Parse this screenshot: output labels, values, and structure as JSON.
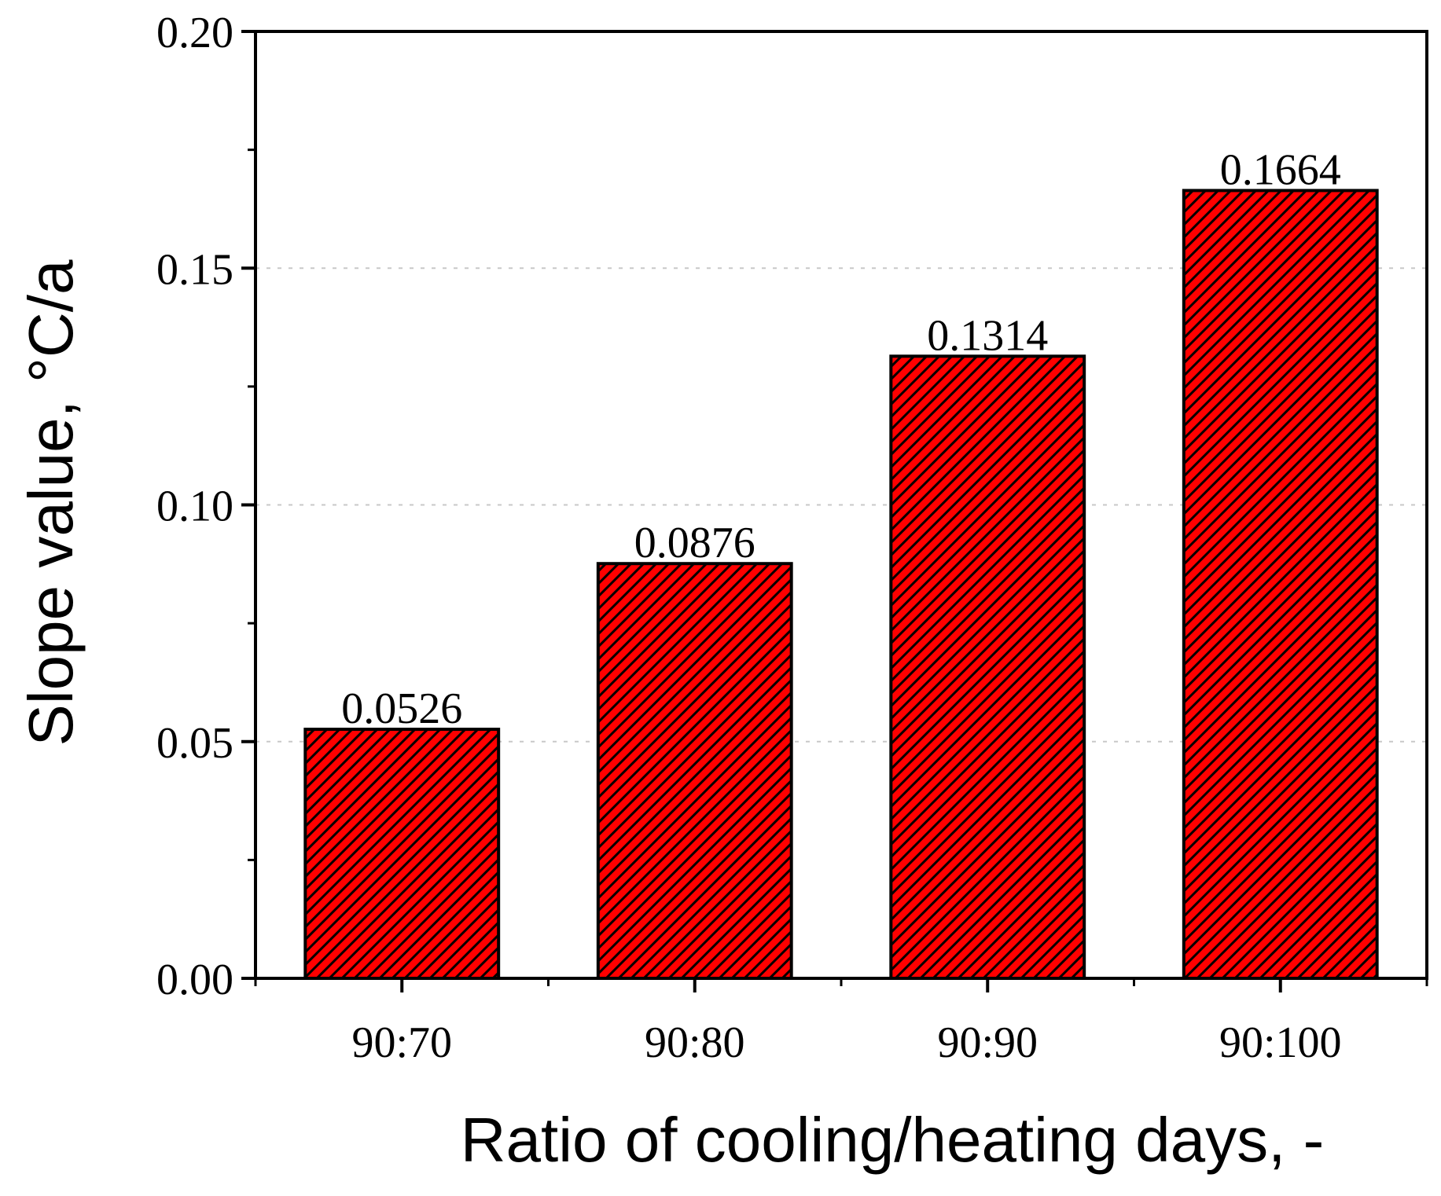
{
  "chart_data": {
    "type": "bar",
    "title": "",
    "categories": [
      "90:70",
      "90:80",
      "90:90",
      "90:100"
    ],
    "values": [
      0.0526,
      0.0876,
      0.1314,
      0.1664
    ],
    "value_labels": [
      "0.0526",
      "0.0876",
      "0.1314",
      "0.1664"
    ],
    "xlabel": "Ratio of cooling/heating days, -",
    "ylabel": "Slope value,  °C/a",
    "ylim": [
      0,
      0.2
    ],
    "yticks": [
      0.0,
      0.05,
      0.1,
      0.15,
      0.2
    ],
    "ytick_labels": [
      "0.00",
      "0.05",
      "0.10",
      "0.15",
      "0.20"
    ],
    "grid": "horizontal-dotted",
    "bar_fill": "hatched",
    "colors": {
      "bar_fill": "#ff0000",
      "hatch": "#000000",
      "bar_edge": "#000000",
      "grid": "#c8c8c8",
      "axis": "#000000"
    }
  }
}
